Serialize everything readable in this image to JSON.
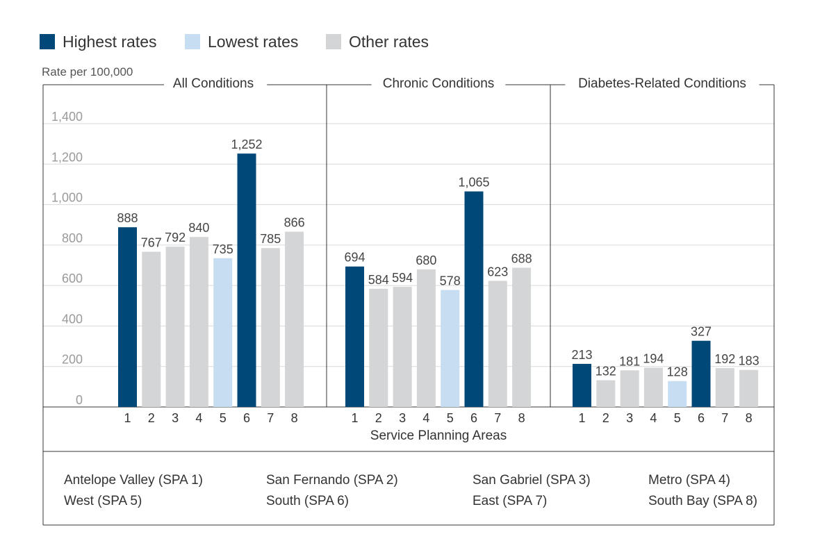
{
  "colors": {
    "highest": "#004878",
    "lowest": "#c6ddf2",
    "other": "#d3d5d6",
    "grid": "#d9d9d9",
    "frame": "#333333"
  },
  "legend": [
    {
      "label": "Highest rates",
      "color_key": "highest"
    },
    {
      "label": "Lowest rates",
      "color_key": "lowest"
    },
    {
      "label": "Other rates",
      "color_key": "other"
    }
  ],
  "chart_data": {
    "type": "bar",
    "ylabel": "Rate per 100,000",
    "xlabel": "Service Planning Areas",
    "ylim": [
      0,
      1400
    ],
    "yticks": [
      0,
      200,
      400,
      600,
      800,
      1000,
      1200,
      1400
    ],
    "ytick_labels": [
      "0",
      "200",
      "400",
      "600",
      "800",
      "1,000",
      "1,200",
      "1,400"
    ],
    "grid": true,
    "legend_position": "top-left",
    "categories": [
      "1",
      "2",
      "3",
      "4",
      "5",
      "6",
      "7",
      "8"
    ],
    "panels": [
      {
        "title": "All Conditions",
        "values": [
          888,
          767,
          792,
          840,
          735,
          1252,
          785,
          866
        ],
        "value_labels": [
          "888",
          "767",
          "792",
          "840",
          "735",
          "1,252",
          "785",
          "866"
        ],
        "highlights": [
          "highest",
          "other",
          "other",
          "other",
          "lowest",
          "highest",
          "other",
          "other"
        ]
      },
      {
        "title": "Chronic Conditions",
        "values": [
          694,
          584,
          594,
          680,
          578,
          1065,
          623,
          688
        ],
        "value_labels": [
          "694",
          "584",
          "594",
          "680",
          "578",
          "1,065",
          "623",
          "688"
        ],
        "highlights": [
          "highest",
          "other",
          "other",
          "other",
          "lowest",
          "highest",
          "other",
          "other"
        ]
      },
      {
        "title": "Diabetes-Related Conditions",
        "values": [
          213,
          132,
          181,
          194,
          128,
          327,
          192,
          183
        ],
        "value_labels": [
          "213",
          "132",
          "181",
          "194",
          "128",
          "327",
          "192",
          "183"
        ],
        "highlights": [
          "highest",
          "other",
          "other",
          "other",
          "lowest",
          "highest",
          "other",
          "other"
        ]
      }
    ]
  },
  "spa_key": [
    [
      "Antelope Valley (SPA 1)",
      "San Fernando (SPA 2)",
      "San Gabriel (SPA 3)",
      "Metro (SPA 4)"
    ],
    [
      "West (SPA 5)",
      "South (SPA 6)",
      "East (SPA 7)",
      "South Bay (SPA 8)"
    ]
  ]
}
